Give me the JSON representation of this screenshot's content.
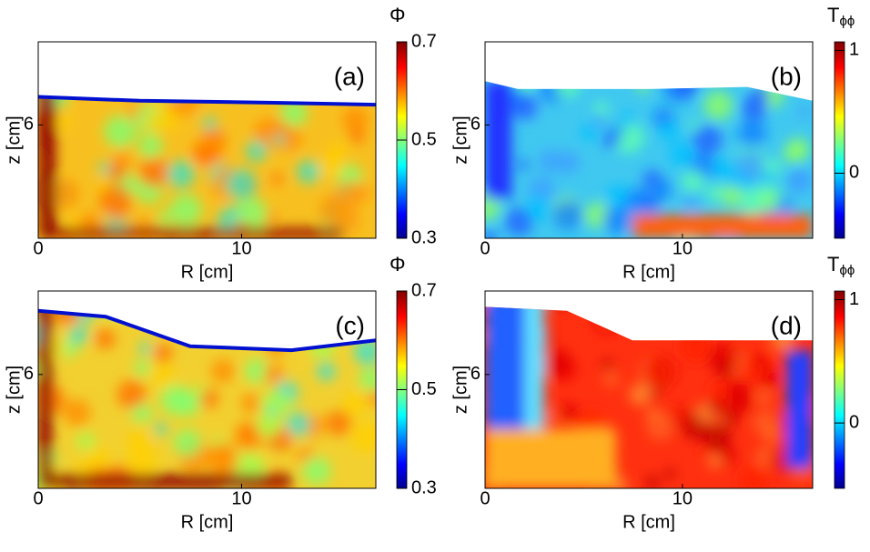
{
  "chart_data": [
    {
      "type": "heatmap",
      "panel_label": "(a)",
      "xlabel": "R [cm]",
      "ylabel": "z [cm]",
      "xlim": [
        0,
        16.6
      ],
      "ylim": [
        0,
        10.4
      ],
      "xticks": [
        0,
        10
      ],
      "yticks": [
        6
      ],
      "colorbar": {
        "label": "Φ",
        "clim": [
          0.3,
          0.7
        ],
        "ticks": [
          0.3,
          0.5,
          0.7
        ]
      }
    },
    {
      "type": "heatmap",
      "panel_label": "(b)",
      "xlabel": "R [cm]",
      "ylabel": "z [cm]",
      "xlim": [
        0,
        16.6
      ],
      "ylim": [
        0,
        10.4
      ],
      "xticks": [
        0,
        10
      ],
      "yticks": [
        6
      ],
      "colorbar": {
        "label": "T",
        "subscript": "ϕϕ",
        "clim": [
          -0.53,
          1.07
        ],
        "ticks": [
          0,
          1
        ]
      }
    },
    {
      "type": "heatmap",
      "panel_label": "(c)",
      "xlabel": "R [cm]",
      "ylabel": "z [cm]",
      "xlim": [
        0,
        16.6
      ],
      "ylim": [
        0,
        10.4
      ],
      "xticks": [
        0,
        10
      ],
      "yticks": [
        6
      ],
      "colorbar": {
        "label": "Φ",
        "clim": [
          0.3,
          0.7
        ],
        "ticks": [
          0.3,
          0.5,
          0.7
        ]
      }
    },
    {
      "type": "heatmap",
      "panel_label": "(d)",
      "xlabel": "R [cm]",
      "ylabel": "z [cm]",
      "xlim": [
        0,
        16.6
      ],
      "ylim": [
        0,
        10.4
      ],
      "xticks": [
        0,
        10
      ],
      "yticks": [
        6
      ],
      "colorbar": {
        "label": "T",
        "subscript": "ϕϕ",
        "clim": [
          -0.53,
          1.07
        ],
        "ticks": [
          0,
          1
        ]
      }
    }
  ]
}
